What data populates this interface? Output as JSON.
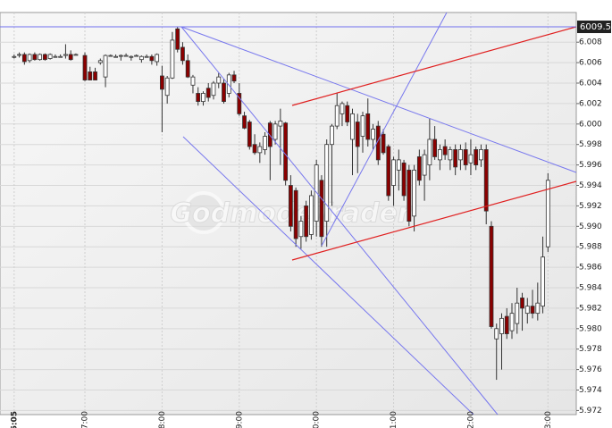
{
  "chart_data": {
    "type": "candlestick",
    "watermark": "GodmodeTrader",
    "current_price": {
      "value": 6.0095,
      "label": "6009.5"
    },
    "up_color": "#ffffff",
    "down_color": "#8b0000",
    "grid": true,
    "xlim": [
      354,
      802
    ],
    "xticks": [
      {
        "value": 365,
        "label": "06:05"
      },
      {
        "value": 420,
        "label": "07:00"
      },
      {
        "value": 480,
        "label": "08:00"
      },
      {
        "value": 540,
        "label": "09:00"
      },
      {
        "value": 600,
        "label": "10:00"
      },
      {
        "value": 660,
        "label": "11:00"
      },
      {
        "value": 720,
        "label": "12:00"
      },
      {
        "value": 780,
        "label": "13:00"
      }
    ],
    "ylim": [
      5.9716,
      6.0109
    ],
    "yticks": [
      5.972,
      5.974,
      5.976,
      5.978,
      {
        "value": 5.98,
        "label": "5.980"
      },
      5.982,
      5.984,
      5.986,
      5.988,
      {
        "value": 5.99,
        "label": "5.990"
      },
      5.992,
      5.994,
      5.996,
      5.998,
      {
        "value": 6.0,
        "label": "6.000"
      },
      6.002,
      6.004,
      6.006,
      6.008
    ],
    "x": [
      365,
      369,
      373,
      377,
      381,
      385,
      389,
      393,
      397,
      401,
      405,
      409,
      413,
      420,
      424,
      428,
      432,
      436,
      440,
      444,
      448,
      452,
      456,
      460,
      464,
      468,
      472,
      476,
      480,
      484,
      488,
      492,
      496,
      500,
      504,
      508,
      512,
      516,
      520,
      524,
      528,
      532,
      536,
      540,
      544,
      548,
      552,
      556,
      560,
      564,
      568,
      572,
      576,
      580,
      584,
      588,
      592,
      596,
      600,
      604,
      608,
      612,
      616,
      620,
      624,
      628,
      632,
      636,
      640,
      644,
      648,
      652,
      656,
      660,
      664,
      668,
      672,
      676,
      680,
      684,
      688,
      692,
      696,
      700,
      704,
      708,
      712,
      716,
      720,
      724,
      728,
      732,
      736,
      740,
      744,
      748,
      752,
      756,
      760,
      764,
      768,
      772,
      776,
      780
    ],
    "ohlc": [
      [
        6.0066,
        6.0068,
        6.0064,
        6.0066
      ],
      [
        6.0068,
        6.007,
        6.0065,
        6.0068
      ],
      [
        6.0068,
        6.007,
        6.0058,
        6.0061
      ],
      [
        6.0062,
        6.0069,
        6.006,
        6.0068
      ],
      [
        6.0068,
        6.007,
        6.0062,
        6.0063
      ],
      [
        6.0063,
        6.0069,
        6.0062,
        6.0068
      ],
      [
        6.0068,
        6.0069,
        6.0062,
        6.0063
      ],
      [
        6.0064,
        6.0069,
        6.0063,
        6.0068
      ],
      [
        6.0066,
        6.0068,
        6.0065,
        6.0066
      ],
      [
        6.0066,
        6.0068,
        6.0065,
        6.0066
      ],
      [
        6.0067,
        6.0078,
        6.0064,
        6.0068
      ],
      [
        6.0068,
        6.0072,
        6.0062,
        6.0063
      ],
      [
        6.0068,
        6.0069,
        6.0068,
        6.0068
      ],
      [
        6.0067,
        6.007,
        6.0042,
        6.0043
      ],
      [
        6.0051,
        6.0056,
        6.0043,
        6.0043
      ],
      [
        6.0051,
        6.0055,
        6.0043,
        6.0043
      ],
      [
        6.006,
        6.0064,
        6.0058,
        6.0062
      ],
      [
        6.0046,
        6.0068,
        6.0036,
        6.0067
      ],
      [
        6.0067,
        6.0068,
        6.0066,
        6.0067
      ],
      [
        6.0066,
        6.0068,
        6.0065,
        6.0066
      ],
      [
        6.0067,
        6.0068,
        6.0062,
        6.0067
      ],
      [
        6.0067,
        6.0069,
        6.0066,
        6.0067
      ],
      [
        6.0066,
        6.0067,
        6.0062,
        6.0066
      ],
      [
        6.0067,
        6.0068,
        6.0066,
        6.0067
      ],
      [
        6.0063,
        6.0067,
        6.006,
        6.0066
      ],
      [
        6.0066,
        6.0068,
        6.0065,
        6.0066
      ],
      [
        6.0066,
        6.0068,
        6.0058,
        6.0062
      ],
      [
        6.0061,
        6.0069,
        6.0057,
        6.0068
      ],
      [
        6.0047,
        6.0057,
        5.9992,
        6.0034
      ],
      [
        6.0028,
        6.0047,
        6.002,
        6.0045
      ],
      [
        6.0045,
        6.009,
        6.0044,
        6.0082
      ],
      [
        6.0093,
        6.0095,
        6.007,
        6.0073
      ],
      [
        6.0075,
        6.008,
        6.0058,
        6.0062
      ],
      [
        6.0062,
        6.0068,
        6.0045,
        6.0046
      ],
      [
        6.0038,
        6.0048,
        6.003,
        6.0046
      ],
      [
        6.003,
        6.0036,
        6.0018,
        6.0022
      ],
      [
        6.0022,
        6.0032,
        6.0018,
        6.003
      ],
      [
        6.0035,
        6.004,
        6.0022,
        6.0026
      ],
      [
        6.0028,
        6.0042,
        6.0024,
        6.004
      ],
      [
        6.004,
        6.005,
        6.0035,
        6.0046
      ],
      [
        6.004,
        6.0044,
        6.002,
        6.0022
      ],
      [
        6.003,
        6.005,
        6.0026,
        6.0048
      ],
      [
        6.0048,
        6.0052,
        6.004,
        6.0042
      ],
      [
        6.003,
        6.004,
        6.0008,
        6.001
      ],
      [
        6.0008,
        6.0012,
        5.9995,
        5.9996
      ],
      [
        6.0002,
        6.0004,
        5.9975,
        5.9978
      ],
      [
        5.998,
        5.999,
        5.997,
        5.9972
      ],
      [
        5.9972,
        5.9982,
        5.9962,
        5.9978
      ],
      [
        5.9975,
        5.9992,
        5.997,
        5.9988
      ],
      [
        6.0001,
        6.0003,
        5.9945,
        5.9978
      ],
      [
        5.9985,
        6.0003,
        5.998,
        6.0
      ],
      [
        5.9998,
        6.0015,
        5.996,
        6.0003
      ],
      [
        6.0001,
        6.0002,
        5.994,
        5.9945
      ],
      [
        5.994,
        5.995,
        5.9895,
        5.99
      ],
      [
        5.9935,
        5.9938,
        5.988,
        5.9888
      ],
      [
        5.989,
        5.991,
        5.9878,
        5.9905
      ],
      [
        5.992,
        5.9925,
        5.9885,
        5.989
      ],
      [
        5.9892,
        5.9935,
        5.9887,
        5.993
      ],
      [
        5.9905,
        5.9965,
        5.989,
        5.996
      ],
      [
        5.9945,
        5.995,
        5.988,
        5.989
      ],
      [
        5.9905,
        5.9985,
        5.988,
        5.998
      ],
      [
        5.998,
        6.0,
        5.992,
        5.9998
      ],
      [
        5.9998,
        6.003,
        5.9995,
        6.0018
      ],
      [
        6.001,
        6.0022,
        5.9998,
        6.002
      ],
      [
        6.0018,
        6.0022,
        5.9998,
        6.0002
      ],
      [
        5.9985,
        6.0015,
        5.995,
        6.001
      ],
      [
        6.0002,
        6.001,
        5.9952,
        5.9978
      ],
      [
        5.9988,
        6.0012,
        5.9972,
        6.0008
      ],
      [
        6.001,
        6.0025,
        5.9978,
        5.9985
      ],
      [
        5.9985,
        6.0,
        5.9975,
        5.9995
      ],
      [
        5.9998,
        6.0003,
        5.996,
        5.9965
      ],
      [
        5.999,
        5.9995,
        5.997,
        5.9972
      ],
      [
        5.9978,
        5.998,
        5.9925,
        5.993
      ],
      [
        5.994,
        5.9968,
        5.992,
        5.9965
      ],
      [
        5.9955,
        5.9975,
        5.9935,
        5.9965
      ],
      [
        5.9962,
        5.9965,
        5.9925,
        5.993
      ],
      [
        5.9955,
        5.996,
        5.99,
        5.9905
      ],
      [
        5.991,
        5.996,
        5.9895,
        5.9955
      ],
      [
        5.9968,
        5.9975,
        5.994,
        5.9945
      ],
      [
        5.995,
        5.9975,
        5.9925,
        5.997
      ],
      [
        5.996,
        6.0005,
        5.9945,
        5.9985
      ],
      [
        5.9985,
        5.9998,
        5.9965,
        5.9968
      ],
      [
        5.9965,
        5.998,
        5.9955,
        5.9975
      ],
      [
        5.9978,
        5.9985,
        5.9965,
        5.997
      ],
      [
        5.9965,
        5.9978,
        5.9955,
        5.9975
      ],
      [
        5.9975,
        5.998,
        5.995,
        5.9958
      ],
      [
        5.9965,
        5.998,
        5.9955,
        5.9975
      ],
      [
        5.9975,
        5.9982,
        5.9955,
        5.996
      ],
      [
        5.9962,
        5.9985,
        5.995,
        5.997
      ],
      [
        5.9975,
        5.9978,
        5.9955,
        5.996
      ],
      [
        5.9965,
        5.998,
        5.9958,
        5.9975
      ],
      [
        5.9975,
        5.998,
        5.9902,
        5.9915
      ],
      [
        5.99,
        5.9905,
        5.98,
        5.9802
      ],
      [
        5.979,
        5.9805,
        5.975,
        5.98
      ],
      [
        5.9795,
        5.9815,
        5.976,
        5.981
      ],
      [
        5.9812,
        5.982,
        5.979,
        5.9795
      ],
      [
        5.9798,
        5.9825,
        5.979,
        5.9815
      ],
      [
        5.9805,
        5.984,
        5.9795,
        5.9825
      ],
      [
        5.983,
        5.9835,
        5.9798,
        5.982
      ],
      [
        5.9815,
        5.983,
        5.9805,
        5.9822
      ],
      [
        5.9822,
        5.9838,
        5.981,
        5.9815
      ],
      [
        5.9815,
        5.9845,
        5.9808,
        5.9825
      ],
      [
        5.9822,
        5.989,
        5.9815,
        5.987
      ],
      [
        5.988,
        5.9952,
        5.9875,
        5.9945
      ]
    ]
  }
}
